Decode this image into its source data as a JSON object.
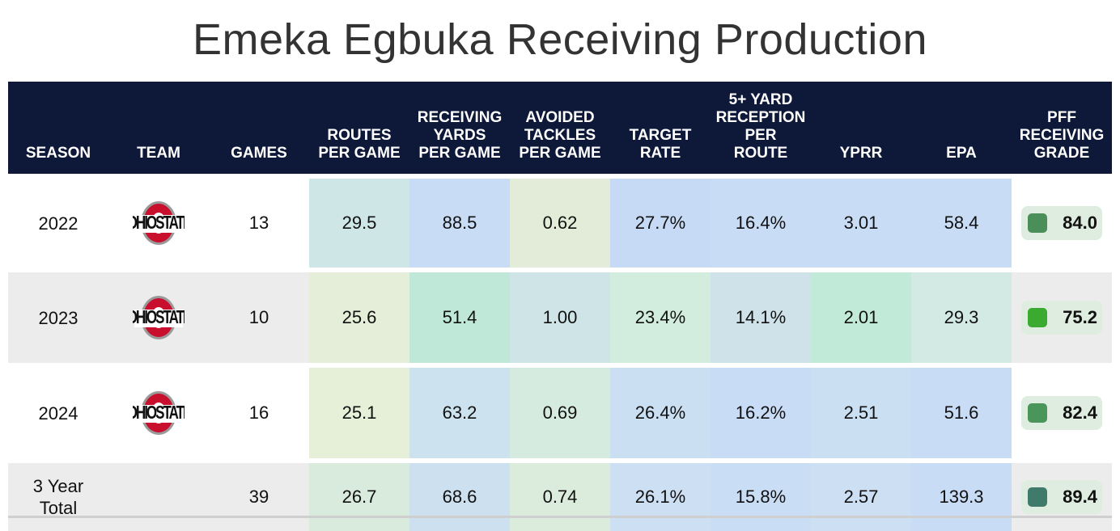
{
  "title": "Emeka Egbuka Receiving Production",
  "columns": [
    {
      "key": "season",
      "label": "SEASON"
    },
    {
      "key": "team",
      "label": "TEAM"
    },
    {
      "key": "games",
      "label": "GAMES"
    },
    {
      "key": "routes",
      "label": "ROUTES\nPER GAME"
    },
    {
      "key": "ryds",
      "label": "RECEIVING\nYARDS\nPER GAME"
    },
    {
      "key": "avoid",
      "label": "AVOIDED\nTACKLES\nPER GAME"
    },
    {
      "key": "target",
      "label": "TARGET\nRATE"
    },
    {
      "key": "five",
      "label": "5+ YARD\nRECEPTION\nPER\nROUTE"
    },
    {
      "key": "yprr",
      "label": "YPRR"
    },
    {
      "key": "epa",
      "label": "EPA"
    },
    {
      "key": "grade",
      "label": "PFF\nRECEIVING\nGRADE"
    }
  ],
  "rows": [
    {
      "season": "2022",
      "team_logo": "ohio-state-logo",
      "games": "13",
      "routes": "29.5",
      "ryds": "88.5",
      "avoid": "0.62",
      "target": "27.7%",
      "five": "16.4%",
      "yprr": "3.01",
      "epa": "58.4",
      "grade": "84.0",
      "colors": {
        "routes": "#cfe6e6",
        "ryds": "#c8dcf5",
        "avoid": "#e2ecd8",
        "target": "#c7daf5",
        "five": "#c8dcf5",
        "yprr": "#c8dcf5",
        "epa": "#c8dcf5",
        "grade_sq": "#4a8f5a"
      }
    },
    {
      "season": "2023",
      "team_logo": "ohio-state-logo",
      "games": "10",
      "routes": "25.6",
      "ryds": "51.4",
      "avoid": "1.00",
      "target": "23.4%",
      "five": "14.1%",
      "yprr": "2.01",
      "epa": "29.3",
      "grade": "75.2",
      "colors": {
        "routes": "#e4eed8",
        "ryds": "#c0e8d9",
        "avoid": "#cfe4e6",
        "target": "#d2ecdd",
        "five": "#cfe2ea",
        "yprr": "#c2ead8",
        "epa": "#d3eae4",
        "grade_sq": "#3aaa30"
      }
    },
    {
      "season": "2024",
      "team_logo": "ohio-state-logo",
      "games": "16",
      "routes": "25.1",
      "ryds": "63.2",
      "avoid": "0.69",
      "target": "26.4%",
      "five": "16.2%",
      "yprr": "2.51",
      "epa": "51.6",
      "grade": "82.4",
      "colors": {
        "routes": "#e6efd8",
        "ryds": "#cce2ee",
        "avoid": "#d6ebe0",
        "target": "#cadff2",
        "five": "#c8dcf5",
        "yprr": "#cadff2",
        "epa": "#c8dcf5",
        "grade_sq": "#4a955a"
      }
    },
    {
      "season": "3 Year\nTotal",
      "team_logo": "",
      "games": "39",
      "routes": "26.7",
      "ryds": "68.6",
      "avoid": "0.74",
      "target": "26.1%",
      "five": "15.8%",
      "yprr": "2.57",
      "epa": "139.3",
      "grade": "89.4",
      "colors": {
        "routes": "#d9ebdd",
        "ryds": "#cce0f0",
        "avoid": "#dbecdc",
        "target": "#cddff2",
        "five": "#c9ddf5",
        "yprr": "#cddff2",
        "epa": "#c8dcf5",
        "grade_sq": "#3f7a6a"
      }
    }
  ]
}
